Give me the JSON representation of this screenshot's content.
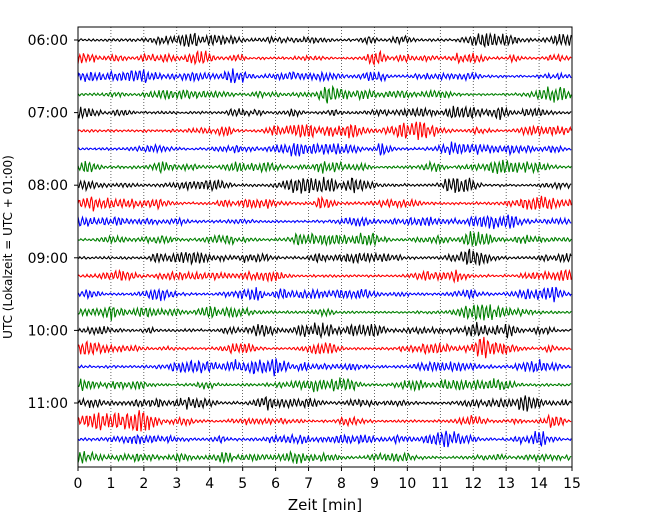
{
  "chart_data": {
    "type": "line",
    "title": "",
    "xlabel": "Zeit  [min]",
    "ylabel": "UTC (Lokalzeit = UTC + 01:00)",
    "xlim": [
      0,
      15
    ],
    "x_ticks": [
      "0",
      "1",
      "2",
      "3",
      "4",
      "5",
      "6",
      "7",
      "8",
      "9",
      "10",
      "11",
      "12",
      "13",
      "14",
      "15"
    ],
    "y_ticks": [
      "06:00",
      "07:00",
      "08:00",
      "09:00",
      "10:00",
      "11:00"
    ],
    "grid": "vertical-dotted",
    "trace_interval_min": 15,
    "start_time": "06:00",
    "trace_count": 24,
    "trace_colors": [
      "#000000",
      "#ff0000",
      "#0000ff",
      "#008000"
    ]
  }
}
